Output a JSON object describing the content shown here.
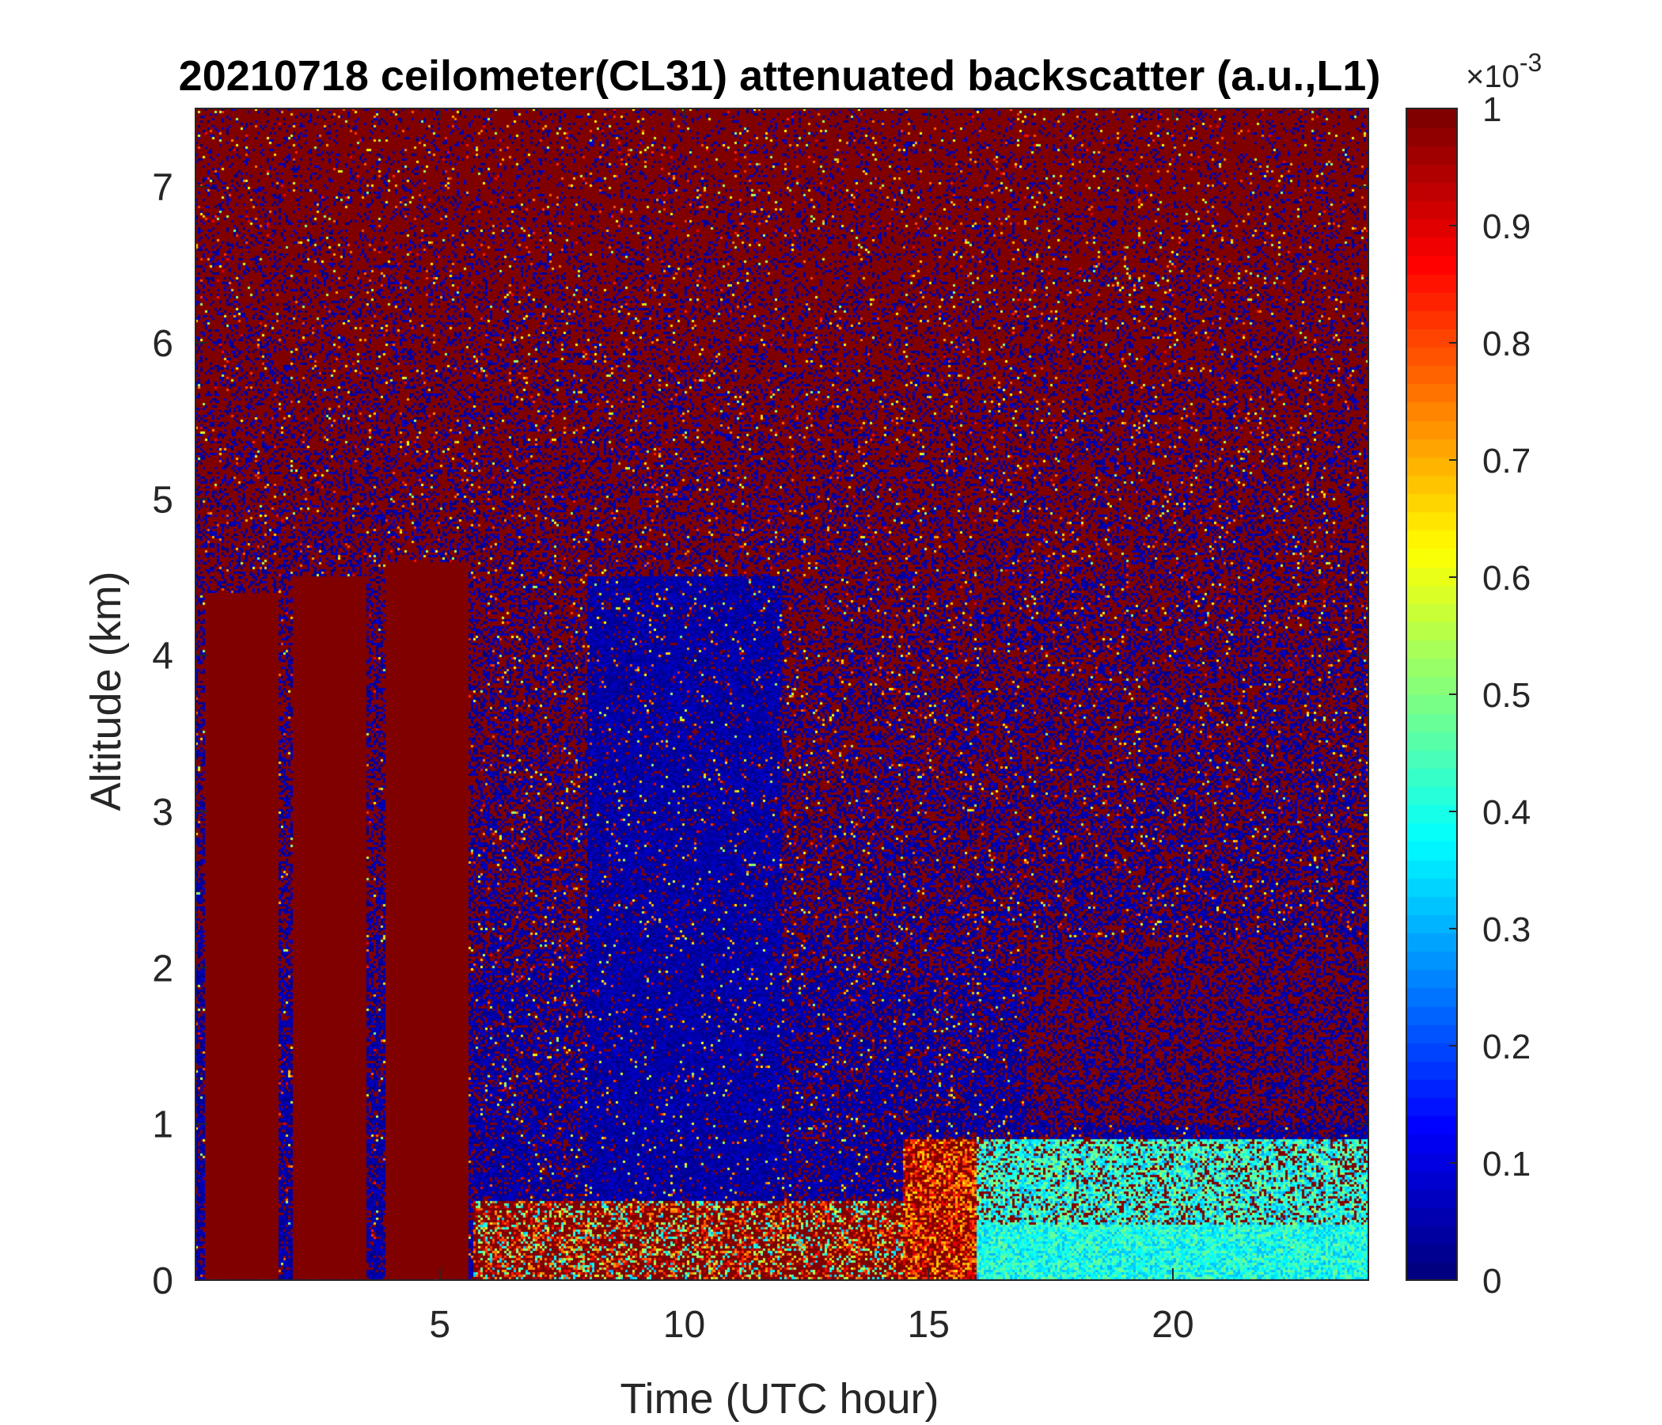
{
  "chart_data": {
    "type": "heatmap",
    "title": "20210718 ceilometer(CL31) attenuated backscatter (a.u.,L1)",
    "xlabel": "Time (UTC hour)",
    "ylabel": "Altitude (km)",
    "xlim": [
      0,
      24
    ],
    "ylim": [
      0,
      7.5
    ],
    "xticks": [
      5,
      10,
      15,
      20
    ],
    "xtick_labels": [
      "5",
      "10",
      "15",
      "20"
    ],
    "yticks": [
      0,
      1,
      2,
      3,
      4,
      5,
      6,
      7
    ],
    "ytick_labels": [
      "0",
      "1",
      "2",
      "3",
      "4",
      "5",
      "6",
      "7"
    ],
    "colorbar": {
      "colormap": "jet",
      "range": [
        0,
        0.001
      ],
      "ticks": [
        0,
        0.1,
        0.2,
        0.3,
        0.4,
        0.5,
        0.6,
        0.7,
        0.8,
        0.9,
        1
      ],
      "tick_labels": [
        "0",
        "0.1",
        "0.2",
        "0.3",
        "0.4",
        "0.5",
        "0.6",
        "0.7",
        "0.8",
        "0.9",
        "1"
      ],
      "exponent_label": "×10",
      "exponent_power": "-3"
    },
    "features": [
      {
        "description": "opaque cloud column",
        "x_range": [
          0.2,
          1.7
        ],
        "y_range": [
          0,
          4.4
        ]
      },
      {
        "description": "opaque cloud column",
        "x_range": [
          2.0,
          3.5
        ],
        "y_range": [
          0,
          4.5
        ]
      },
      {
        "description": "opaque cloud column",
        "x_range": [
          3.9,
          5.6
        ],
        "y_range": [
          0,
          4.6
        ]
      },
      {
        "description": "boundary layer aerosol",
        "x_range": [
          5.7,
          14.5
        ],
        "y_range": [
          0,
          0.5
        ]
      },
      {
        "description": "elevated aerosol layer",
        "x_range": [
          14.5,
          24
        ],
        "y_range": [
          0,
          0.9
        ]
      },
      {
        "description": "scattered clouds",
        "x_range": [
          17,
          24
        ],
        "y_range": [
          1.0,
          2.2
        ]
      }
    ],
    "grid": false,
    "legend": "colorbar-right"
  }
}
